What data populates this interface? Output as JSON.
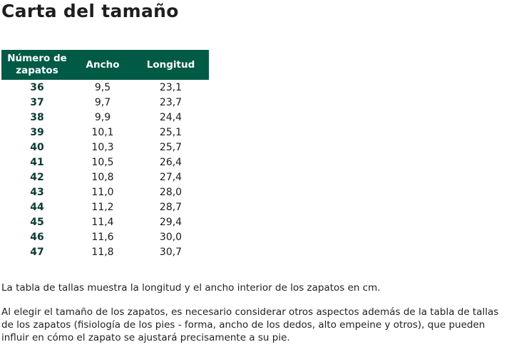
{
  "title": "Carta del tamaño",
  "table": {
    "headers": [
      "Número de zapatos",
      "Ancho",
      "Longitud"
    ],
    "rows": [
      [
        "36",
        "9,5",
        "23,1"
      ],
      [
        "37",
        "9,7",
        "23,7"
      ],
      [
        "38",
        "9,9",
        "24,4"
      ],
      [
        "39",
        "10,1",
        "25,1"
      ],
      [
        "40",
        "10,3",
        "25,7"
      ],
      [
        "41",
        "10,5",
        "26,4"
      ],
      [
        "42",
        "10,8",
        "27,4"
      ],
      [
        "43",
        "11,0",
        "28,0"
      ],
      [
        "44",
        "11,2",
        "28,7"
      ],
      [
        "45",
        "11,4",
        "29,4"
      ],
      [
        "46",
        "11,6",
        "30,0"
      ],
      [
        "47",
        "11,8",
        "30,7"
      ]
    ]
  },
  "paragraphs": [
    "La tabla de tallas muestra la longitud y el ancho interior de los zapatos en cm.",
    "Al elegir el tamaño de los zapatos, es necesario considerar otros aspectos además de la tabla de tallas de los zapatos (fisiología de los pies - forma, ancho de los dedos, alto empeine y otros), que pueden influir en cómo el zapato se ajustará precisamente a su pie."
  ],
  "colors": {
    "header_bg": "#005a46",
    "size_text": "#0d3b33"
  }
}
